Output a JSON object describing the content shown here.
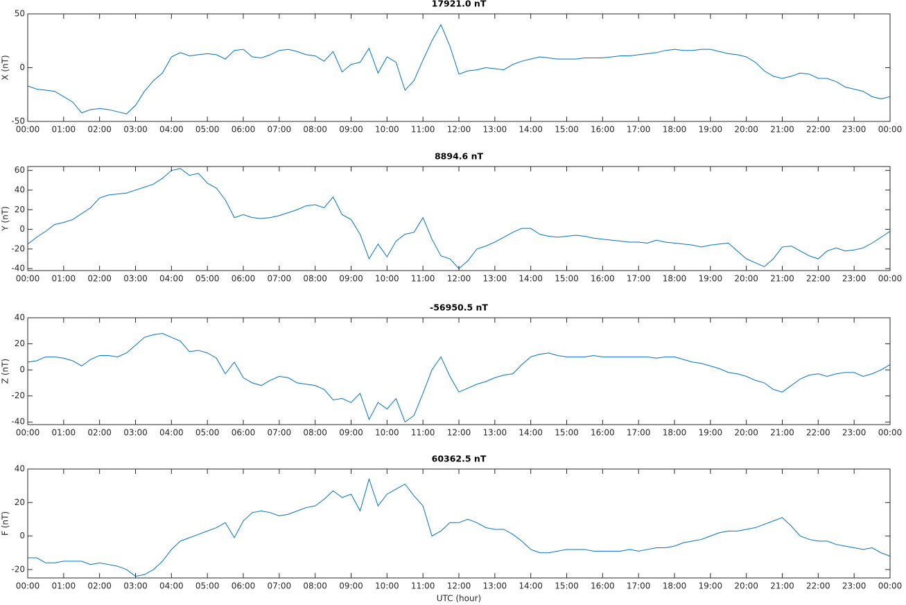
{
  "chart_data": [
    {
      "type": "line",
      "title": "17921.0 nT",
      "ylabel": "X (nT)",
      "color": "#0072bd",
      "x": [
        0,
        0.25,
        0.5,
        0.75,
        1,
        1.25,
        1.5,
        1.75,
        2,
        2.25,
        2.5,
        2.75,
        3,
        3.25,
        3.5,
        3.75,
        4,
        4.25,
        4.5,
        4.75,
        5,
        5.25,
        5.5,
        5.75,
        6,
        6.25,
        6.5,
        6.75,
        7,
        7.25,
        7.5,
        7.75,
        8,
        8.25,
        8.5,
        8.75,
        9,
        9.25,
        9.5,
        9.75,
        10,
        10.25,
        10.5,
        10.75,
        11,
        11.25,
        11.5,
        11.75,
        12,
        12.25,
        12.5,
        12.75,
        13,
        13.25,
        13.5,
        13.75,
        14,
        14.25,
        14.5,
        14.75,
        15,
        15.25,
        15.5,
        15.75,
        16,
        16.25,
        16.5,
        16.75,
        17,
        17.25,
        17.5,
        17.75,
        18,
        18.25,
        18.5,
        18.75,
        19,
        19.25,
        19.5,
        19.75,
        20,
        20.25,
        20.5,
        20.75,
        21,
        21.25,
        21.5,
        21.75,
        22,
        22.25,
        22.5,
        22.75,
        23,
        23.25,
        23.5,
        23.75,
        24
      ],
      "values": [
        -17,
        -20,
        -21,
        -22,
        -27,
        -32,
        -42,
        -39,
        -38,
        -39,
        -41,
        -43,
        -35,
        -22,
        -12,
        -5,
        10,
        14,
        11,
        12,
        13,
        12,
        8,
        16,
        17,
        10,
        9,
        12,
        16,
        17,
        15,
        12,
        11,
        6,
        15,
        -4,
        3,
        5,
        18,
        -5,
        10,
        5,
        -21,
        -12,
        7,
        25,
        40,
        20,
        -6,
        -3,
        -2,
        0,
        -1,
        -2,
        3,
        6,
        8,
        10,
        9,
        8,
        8,
        8,
        9,
        9,
        9,
        10,
        11,
        11,
        12,
        13,
        14,
        16,
        17,
        16,
        16,
        17,
        17,
        15,
        13,
        12,
        10,
        5,
        -3,
        -8,
        -10,
        -8,
        -5,
        -6,
        -10,
        -10,
        -13,
        -18,
        -20,
        -22,
        -27,
        -29,
        -27
      ],
      "xlim": [
        0,
        24
      ],
      "ylim": [
        -50,
        50
      ],
      "yticks": [
        -50,
        0,
        50
      ],
      "xticks": [
        {
          "value": 0,
          "label": "00:00"
        },
        {
          "value": 1,
          "label": "01:00"
        },
        {
          "value": 2,
          "label": "02:00"
        },
        {
          "value": 3,
          "label": "03:00"
        },
        {
          "value": 4,
          "label": "04:00"
        },
        {
          "value": 5,
          "label": "05:00"
        },
        {
          "value": 6,
          "label": "06:00"
        },
        {
          "value": 7,
          "label": "07:00"
        },
        {
          "value": 8,
          "label": "08:00"
        },
        {
          "value": 9,
          "label": "09:00"
        },
        {
          "value": 10,
          "label": "10:00"
        },
        {
          "value": 11,
          "label": "11:00"
        },
        {
          "value": 12,
          "label": "12:00"
        },
        {
          "value": 13,
          "label": "13:00"
        },
        {
          "value": 14,
          "label": "14:00"
        },
        {
          "value": 15,
          "label": "15:00"
        },
        {
          "value": 16,
          "label": "16:00"
        },
        {
          "value": 17,
          "label": "17:00"
        },
        {
          "value": 18,
          "label": "18:00"
        },
        {
          "value": 19,
          "label": "19:00"
        },
        {
          "value": 20,
          "label": "20:00"
        },
        {
          "value": 21,
          "label": "21:00"
        },
        {
          "value": 22,
          "label": "22:00"
        },
        {
          "value": 23,
          "label": "23:00"
        },
        {
          "value": 24,
          "label": "00:00"
        }
      ]
    },
    {
      "type": "line",
      "title": "8894.6 nT",
      "ylabel": "Y (nT)",
      "color": "#0072bd",
      "x": [
        0,
        0.25,
        0.5,
        0.75,
        1,
        1.25,
        1.5,
        1.75,
        2,
        2.25,
        2.5,
        2.75,
        3,
        3.25,
        3.5,
        3.75,
        4,
        4.25,
        4.5,
        4.75,
        5,
        5.25,
        5.5,
        5.75,
        6,
        6.25,
        6.5,
        6.75,
        7,
        7.25,
        7.5,
        7.75,
        8,
        8.25,
        8.5,
        8.75,
        9,
        9.25,
        9.5,
        9.75,
        10,
        10.25,
        10.5,
        10.75,
        11,
        11.25,
        11.5,
        11.75,
        12,
        12.25,
        12.5,
        12.75,
        13,
        13.25,
        13.5,
        13.75,
        14,
        14.25,
        14.5,
        14.75,
        15,
        15.25,
        15.5,
        15.75,
        16,
        16.25,
        16.5,
        16.75,
        17,
        17.25,
        17.5,
        17.75,
        18,
        18.25,
        18.5,
        18.75,
        19,
        19.25,
        19.5,
        19.75,
        20,
        20.25,
        20.5,
        20.75,
        21,
        21.25,
        21.5,
        21.75,
        22,
        22.25,
        22.5,
        22.75,
        23,
        23.25,
        23.5,
        23.75,
        24
      ],
      "values": [
        -15,
        -8,
        -2,
        5,
        7,
        10,
        16,
        22,
        32,
        35,
        36,
        37,
        40,
        43,
        46,
        52,
        60,
        62,
        55,
        57,
        47,
        42,
        30,
        12,
        15,
        12,
        11,
        12,
        14,
        17,
        20,
        24,
        25,
        22,
        33,
        15,
        10,
        -5,
        -30,
        -15,
        -28,
        -12,
        -5,
        -3,
        12,
        -10,
        -27,
        -30,
        -40,
        -32,
        -20,
        -17,
        -13,
        -8,
        -3,
        1,
        1,
        -5,
        -7,
        -8,
        -7,
        -6,
        -7,
        -9,
        -10,
        -11,
        -12,
        -13,
        -13,
        -14,
        -11,
        -13,
        -14,
        -15,
        -16,
        -18,
        -16,
        -15,
        -14,
        -22,
        -30,
        -34,
        -38,
        -30,
        -18,
        -17,
        -22,
        -27,
        -30,
        -22,
        -19,
        -22,
        -21,
        -19,
        -14,
        -8,
        -2
      ],
      "xlim": [
        0,
        24
      ],
      "ylim": [
        -42,
        64
      ],
      "yticks": [
        -40,
        -20,
        0,
        20,
        40,
        60
      ],
      "xticks": [
        {
          "value": 0,
          "label": "00:00"
        },
        {
          "value": 1,
          "label": "01:00"
        },
        {
          "value": 2,
          "label": "02:00"
        },
        {
          "value": 3,
          "label": "03:00"
        },
        {
          "value": 4,
          "label": "04:00"
        },
        {
          "value": 5,
          "label": "05:00"
        },
        {
          "value": 6,
          "label": "06:00"
        },
        {
          "value": 7,
          "label": "07:00"
        },
        {
          "value": 8,
          "label": "08:00"
        },
        {
          "value": 9,
          "label": "09:00"
        },
        {
          "value": 10,
          "label": "10:00"
        },
        {
          "value": 11,
          "label": "11:00"
        },
        {
          "value": 12,
          "label": "12:00"
        },
        {
          "value": 13,
          "label": "13:00"
        },
        {
          "value": 14,
          "label": "14:00"
        },
        {
          "value": 15,
          "label": "15:00"
        },
        {
          "value": 16,
          "label": "16:00"
        },
        {
          "value": 17,
          "label": "17:00"
        },
        {
          "value": 18,
          "label": "18:00"
        },
        {
          "value": 19,
          "label": "19:00"
        },
        {
          "value": 20,
          "label": "20:00"
        },
        {
          "value": 21,
          "label": "21:00"
        },
        {
          "value": 22,
          "label": "22:00"
        },
        {
          "value": 23,
          "label": "23:00"
        },
        {
          "value": 24,
          "label": "00:00"
        }
      ]
    },
    {
      "type": "line",
      "title": "-56950.5 nT",
      "ylabel": "Z (nT)",
      "color": "#0072bd",
      "x": [
        0,
        0.25,
        0.5,
        0.75,
        1,
        1.25,
        1.5,
        1.75,
        2,
        2.25,
        2.5,
        2.75,
        3,
        3.25,
        3.5,
        3.75,
        4,
        4.25,
        4.5,
        4.75,
        5,
        5.25,
        5.5,
        5.75,
        6,
        6.25,
        6.5,
        6.75,
        7,
        7.25,
        7.5,
        7.75,
        8,
        8.25,
        8.5,
        8.75,
        9,
        9.25,
        9.5,
        9.75,
        10,
        10.25,
        10.5,
        10.75,
        11,
        11.25,
        11.5,
        11.75,
        12,
        12.25,
        12.5,
        12.75,
        13,
        13.25,
        13.5,
        13.75,
        14,
        14.25,
        14.5,
        14.75,
        15,
        15.25,
        15.5,
        15.75,
        16,
        16.25,
        16.5,
        16.75,
        17,
        17.25,
        17.5,
        17.75,
        18,
        18.25,
        18.5,
        18.75,
        19,
        19.25,
        19.5,
        19.75,
        20,
        20.25,
        20.5,
        20.75,
        21,
        21.25,
        21.5,
        21.75,
        22,
        22.25,
        22.5,
        22.75,
        23,
        23.25,
        23.5,
        23.75,
        24
      ],
      "values": [
        6,
        7,
        10,
        10,
        9,
        7,
        3,
        8,
        11,
        11,
        10,
        13,
        19,
        25,
        27,
        28,
        25,
        22,
        14,
        15,
        13,
        9,
        -3,
        6,
        -6,
        -10,
        -12,
        -8,
        -5,
        -6,
        -10,
        -11,
        -12,
        -15,
        -23,
        -22,
        -25,
        -18,
        -38,
        -25,
        -30,
        -22,
        -40,
        -35,
        -18,
        0,
        10,
        -5,
        -17,
        -14,
        -11,
        -9,
        -6,
        -4,
        -3,
        4,
        10,
        12,
        13,
        11,
        10,
        10,
        10,
        11,
        10,
        10,
        10,
        10,
        10,
        10,
        9,
        10,
        10,
        8,
        6,
        5,
        3,
        1,
        -2,
        -3,
        -5,
        -8,
        -10,
        -15,
        -17,
        -12,
        -7,
        -4,
        -3,
        -5,
        -3,
        -2,
        -2,
        -5,
        -3,
        0,
        4
      ],
      "xlim": [
        0,
        24
      ],
      "ylim": [
        -42,
        40
      ],
      "yticks": [
        -40,
        -20,
        0,
        20,
        40
      ],
      "xticks": [
        {
          "value": 0,
          "label": "00:00"
        },
        {
          "value": 1,
          "label": "01:00"
        },
        {
          "value": 2,
          "label": "02:00"
        },
        {
          "value": 3,
          "label": "03:00"
        },
        {
          "value": 4,
          "label": "04:00"
        },
        {
          "value": 5,
          "label": "05:00"
        },
        {
          "value": 6,
          "label": "06:00"
        },
        {
          "value": 7,
          "label": "07:00"
        },
        {
          "value": 8,
          "label": "08:00"
        },
        {
          "value": 9,
          "label": "09:00"
        },
        {
          "value": 10,
          "label": "10:00"
        },
        {
          "value": 11,
          "label": "11:00"
        },
        {
          "value": 12,
          "label": "12:00"
        },
        {
          "value": 13,
          "label": "13:00"
        },
        {
          "value": 14,
          "label": "14:00"
        },
        {
          "value": 15,
          "label": "15:00"
        },
        {
          "value": 16,
          "label": "16:00"
        },
        {
          "value": 17,
          "label": "17:00"
        },
        {
          "value": 18,
          "label": "18:00"
        },
        {
          "value": 19,
          "label": "19:00"
        },
        {
          "value": 20,
          "label": "20:00"
        },
        {
          "value": 21,
          "label": "21:00"
        },
        {
          "value": 22,
          "label": "22:00"
        },
        {
          "value": 23,
          "label": "23:00"
        },
        {
          "value": 24,
          "label": "00:00"
        }
      ]
    },
    {
      "type": "line",
      "title": "60362.5 nT",
      "ylabel": "F (nT)",
      "xlabel": "UTC (hour)",
      "color": "#0072bd",
      "x": [
        0,
        0.25,
        0.5,
        0.75,
        1,
        1.25,
        1.5,
        1.75,
        2,
        2.25,
        2.5,
        2.75,
        3,
        3.25,
        3.5,
        3.75,
        4,
        4.25,
        4.5,
        4.75,
        5,
        5.25,
        5.5,
        5.75,
        6,
        6.25,
        6.5,
        6.75,
        7,
        7.25,
        7.5,
        7.75,
        8,
        8.25,
        8.5,
        8.75,
        9,
        9.25,
        9.5,
        9.75,
        10,
        10.25,
        10.5,
        10.75,
        11,
        11.25,
        11.5,
        11.75,
        12,
        12.25,
        12.5,
        12.75,
        13,
        13.25,
        13.5,
        13.75,
        14,
        14.25,
        14.5,
        14.75,
        15,
        15.25,
        15.5,
        15.75,
        16,
        16.25,
        16.5,
        16.75,
        17,
        17.25,
        17.5,
        17.75,
        18,
        18.25,
        18.5,
        18.75,
        19,
        19.25,
        19.5,
        19.75,
        20,
        20.25,
        20.5,
        20.75,
        21,
        21.25,
        21.5,
        21.75,
        22,
        22.25,
        22.5,
        22.75,
        23,
        23.25,
        23.5,
        23.75,
        24
      ],
      "values": [
        -13,
        -13,
        -16,
        -16,
        -15,
        -15,
        -15,
        -17,
        -16,
        -17,
        -18,
        -20,
        -24,
        -23,
        -20,
        -15,
        -8,
        -3,
        -1,
        1,
        3,
        5,
        8,
        -1,
        9,
        14,
        15,
        14,
        12,
        13,
        15,
        17,
        18,
        22,
        27,
        23,
        25,
        15,
        34,
        18,
        25,
        28,
        31,
        24,
        18,
        0,
        3,
        8,
        8,
        10,
        8,
        5,
        4,
        4,
        1,
        -3,
        -8,
        -10,
        -10,
        -9,
        -8,
        -8,
        -8,
        -9,
        -9,
        -9,
        -9,
        -8,
        -9,
        -8,
        -7,
        -7,
        -6,
        -4,
        -3,
        -2,
        0,
        2,
        3,
        3,
        4,
        5,
        7,
        9,
        11,
        6,
        0,
        -2,
        -3,
        -3,
        -5,
        -6,
        -7,
        -8,
        -7,
        -10,
        -12
      ],
      "xlim": [
        0,
        24
      ],
      "ylim": [
        -25,
        40
      ],
      "yticks": [
        -20,
        0,
        20,
        40
      ],
      "xticks": [
        {
          "value": 0,
          "label": "00:00"
        },
        {
          "value": 1,
          "label": "01:00"
        },
        {
          "value": 2,
          "label": "02:00"
        },
        {
          "value": 3,
          "label": "03:00"
        },
        {
          "value": 4,
          "label": "04:00"
        },
        {
          "value": 5,
          "label": "05:00"
        },
        {
          "value": 6,
          "label": "06:00"
        },
        {
          "value": 7,
          "label": "07:00"
        },
        {
          "value": 8,
          "label": "08:00"
        },
        {
          "value": 9,
          "label": "09:00"
        },
        {
          "value": 10,
          "label": "10:00"
        },
        {
          "value": 11,
          "label": "11:00"
        },
        {
          "value": 12,
          "label": "12:00"
        },
        {
          "value": 13,
          "label": "13:00"
        },
        {
          "value": 14,
          "label": "14:00"
        },
        {
          "value": 15,
          "label": "15:00"
        },
        {
          "value": 16,
          "label": "16:00"
        },
        {
          "value": 17,
          "label": "17:00"
        },
        {
          "value": 18,
          "label": "18:00"
        },
        {
          "value": 19,
          "label": "19:00"
        },
        {
          "value": 20,
          "label": "20:00"
        },
        {
          "value": 21,
          "label": "21:00"
        },
        {
          "value": 22,
          "label": "22:00"
        },
        {
          "value": 23,
          "label": "23:00"
        },
        {
          "value": 24,
          "label": "00:00"
        }
      ]
    }
  ]
}
